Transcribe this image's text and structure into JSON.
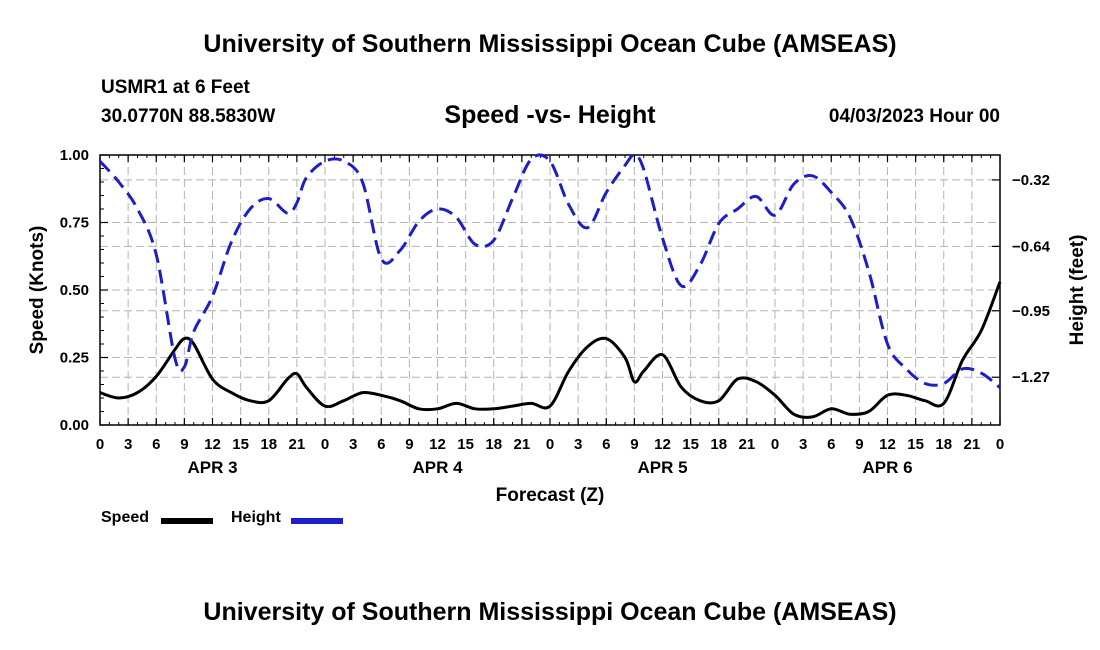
{
  "header": {
    "title": "University of Southern Mississippi Ocean Cube (AMSEAS)",
    "station": "USMR1 at 6 Feet",
    "coords": "30.0770N  88.5830W",
    "subtitle": "Speed -vs- Height",
    "datetime": "04/03/2023 Hour 00"
  },
  "footer": {
    "title": "University of Southern Mississippi Ocean Cube (AMSEAS)"
  },
  "legend": {
    "speed": "Speed",
    "height": "Height"
  },
  "colors": {
    "speed": "#000000",
    "height": "#1e1ec8",
    "grid": "#b4b4b4"
  },
  "chart_data": {
    "type": "line",
    "title": "Speed -vs- Height",
    "xlabel": "Forecast (Z)",
    "ylabel": "Speed (Knots)",
    "ylabel_right": "Height (feet)",
    "x_range": [
      0,
      96
    ],
    "ylim": [
      0,
      1.0
    ],
    "ylim_right": [
      -1.5,
      -0.2
    ],
    "grid": true,
    "x_tick_labels": [
      "0",
      "3",
      "6",
      "9",
      "12",
      "15",
      "18",
      "21",
      "0",
      "3",
      "6",
      "9",
      "12",
      "15",
      "18",
      "21",
      "0",
      "3",
      "6",
      "9",
      "12",
      "15",
      "18",
      "21",
      "0",
      "3",
      "6",
      "9",
      "12",
      "15",
      "18",
      "21",
      "0"
    ],
    "day_labels": [
      {
        "label": "APR 3",
        "x": 12
      },
      {
        "label": "APR 4",
        "x": 36
      },
      {
        "label": "APR 5",
        "x": 60
      },
      {
        "label": "APR 6",
        "x": 84
      }
    ],
    "y_ticks_left": [
      {
        "label": "0.00",
        "value": 0.0
      },
      {
        "label": "0.25",
        "value": 0.25
      },
      {
        "label": "0.50",
        "value": 0.5
      },
      {
        "label": "0.75",
        "value": 0.75
      },
      {
        "label": "1.00",
        "value": 1.0
      }
    ],
    "y_ticks_right": [
      {
        "label": "-0.32",
        "value": -0.32
      },
      {
        "label": "-0.64",
        "value": -0.64
      },
      {
        "label": "-0.95",
        "value": -0.95
      },
      {
        "label": "-1.27",
        "value": -1.27
      }
    ],
    "series": [
      {
        "name": "Speed",
        "axis": "left",
        "style": "solid",
        "x": [
          0,
          2,
          4,
          6,
          8,
          9,
          10,
          12,
          14,
          16,
          18,
          20,
          21,
          22,
          24,
          26,
          28,
          30,
          32,
          34,
          36,
          38,
          40,
          42,
          44,
          46,
          48,
          50,
          52,
          54,
          56,
          57,
          58,
          60,
          62,
          64,
          66,
          68,
          70,
          72,
          74,
          76,
          78,
          80,
          82,
          84,
          86,
          88,
          90,
          92,
          94,
          96
        ],
        "y": [
          0.12,
          0.1,
          0.12,
          0.18,
          0.28,
          0.32,
          0.3,
          0.17,
          0.12,
          0.09,
          0.09,
          0.17,
          0.19,
          0.14,
          0.07,
          0.09,
          0.12,
          0.11,
          0.09,
          0.06,
          0.06,
          0.08,
          0.06,
          0.06,
          0.07,
          0.08,
          0.07,
          0.2,
          0.29,
          0.32,
          0.25,
          0.16,
          0.2,
          0.26,
          0.14,
          0.09,
          0.09,
          0.17,
          0.16,
          0.11,
          0.04,
          0.03,
          0.06,
          0.04,
          0.05,
          0.11,
          0.11,
          0.09,
          0.08,
          0.24,
          0.35,
          0.53
        ]
      },
      {
        "name": "Height",
        "axis": "right",
        "style": "dashed",
        "x": [
          0,
          2,
          4,
          6,
          8,
          9,
          10,
          12,
          14,
          16,
          18,
          20,
          21,
          22,
          24,
          26,
          28,
          30,
          32,
          34,
          36,
          38,
          40,
          42,
          44,
          46,
          48,
          50,
          52,
          54,
          56,
          57,
          58,
          60,
          62,
          64,
          66,
          68,
          70,
          72,
          74,
          76,
          78,
          80,
          82,
          84,
          86,
          88,
          90,
          92,
          94,
          96
        ],
        "y": [
          -0.23,
          -0.33,
          -0.46,
          -0.68,
          -1.18,
          -1.22,
          -1.05,
          -0.88,
          -0.62,
          -0.46,
          -0.41,
          -0.48,
          -0.43,
          -0.31,
          -0.23,
          -0.23,
          -0.33,
          -0.7,
          -0.66,
          -0.52,
          -0.46,
          -0.5,
          -0.63,
          -0.61,
          -0.41,
          -0.22,
          -0.23,
          -0.44,
          -0.55,
          -0.38,
          -0.25,
          -0.2,
          -0.27,
          -0.6,
          -0.83,
          -0.73,
          -0.53,
          -0.46,
          -0.4,
          -0.49,
          -0.34,
          -0.3,
          -0.38,
          -0.5,
          -0.76,
          -1.11,
          -1.23,
          -1.3,
          -1.3,
          -1.23,
          -1.25,
          -1.32
        ]
      }
    ]
  }
}
